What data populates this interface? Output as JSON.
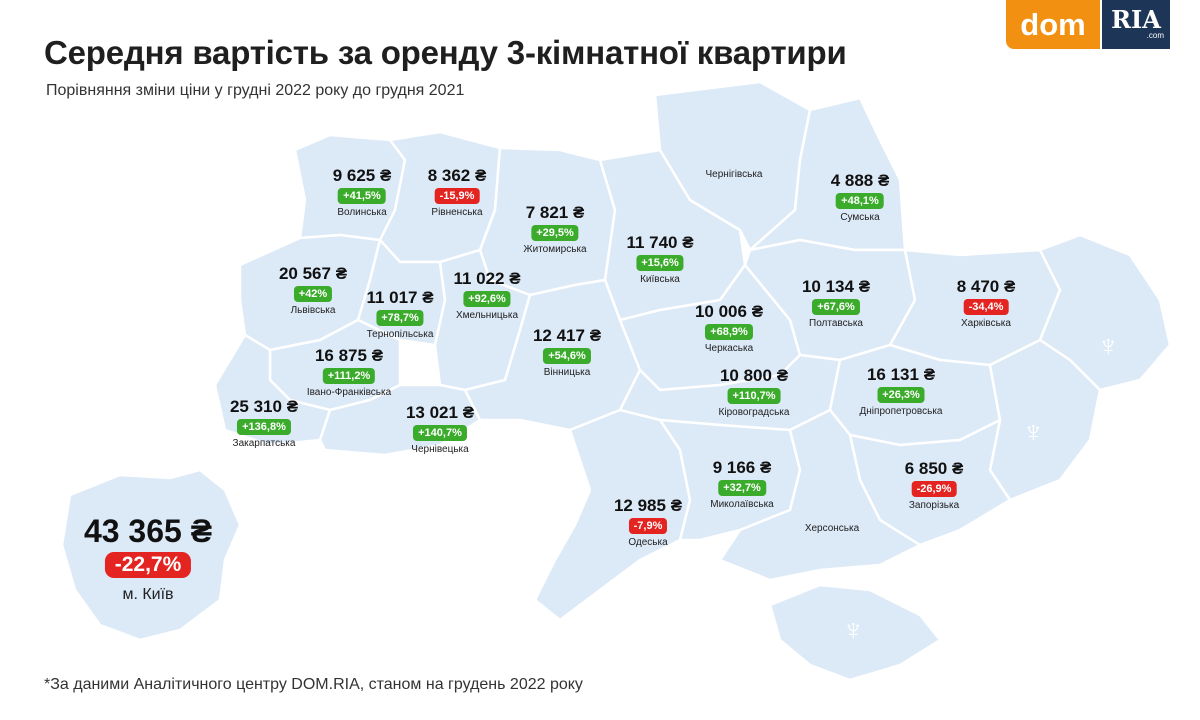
{
  "title": "Середня вартість за оренду 3-кімнатної квартири",
  "subtitle": "Порівняння зміни ціни у грудні 2022 року до грудня 2021",
  "footnote": "*За даними Аналітичного центру DOM.RIA, станом на грудень 2022 року",
  "logo": {
    "dom": "dom",
    "ria": "RIA",
    "com": ".com"
  },
  "colors": {
    "map_fill": "#dce9f7",
    "map_border": "#ffffff",
    "increase": "#3aab2a",
    "decrease": "#e32420",
    "brand_orange": "#f29111",
    "brand_navy": "#1d3557"
  },
  "kyiv": {
    "price": "43 365 ₴",
    "change": "-22,7%",
    "name": "м. Київ"
  },
  "regions": [
    {
      "id": "volynska",
      "price": "9 625 ₴",
      "change": "+41,5%",
      "dir": "up",
      "name": "Волинська"
    },
    {
      "id": "rivnenska",
      "price": "8 362 ₴",
      "change": "-15,9%",
      "dir": "down",
      "name": "Рівненська"
    },
    {
      "id": "zhytomyrska",
      "price": "7 821 ₴",
      "change": "+29,5%",
      "dir": "up",
      "name": "Житомирська"
    },
    {
      "id": "chernihivska",
      "price": "",
      "change": "",
      "dir": "",
      "name": "Чернігівська"
    },
    {
      "id": "sumska",
      "price": "4 888 ₴",
      "change": "+48,1%",
      "dir": "up",
      "name": "Сумська"
    },
    {
      "id": "kyivska",
      "price": "11 740 ₴",
      "change": "+15,6%",
      "dir": "up",
      "name": "Київська"
    },
    {
      "id": "lvivska",
      "price": "20 567 ₴",
      "change": "+42%",
      "dir": "up",
      "name": "Львівська"
    },
    {
      "id": "khmelnytska",
      "price": "11 022 ₴",
      "change": "+92,6%",
      "dir": "up",
      "name": "Хмельницька"
    },
    {
      "id": "ternopilska",
      "price": "11 017 ₴",
      "change": "+78,7%",
      "dir": "up",
      "name": "Тернопільська"
    },
    {
      "id": "poltavska",
      "price": "10 134 ₴",
      "change": "+67,6%",
      "dir": "up",
      "name": "Полтавська"
    },
    {
      "id": "kharkivska",
      "price": "8 470 ₴",
      "change": "-34,4%",
      "dir": "down",
      "name": "Харківська"
    },
    {
      "id": "cherkaska",
      "price": "10 006 ₴",
      "change": "+68,9%",
      "dir": "up",
      "name": "Черкаська"
    },
    {
      "id": "vinnytska",
      "price": "12 417 ₴",
      "change": "+54,6%",
      "dir": "up",
      "name": "Вінницька"
    },
    {
      "id": "ivano_frankivska",
      "price": "16 875 ₴",
      "change": "+111,2%",
      "dir": "up",
      "name": "Івано-Франківська"
    },
    {
      "id": "zakarpatska",
      "price": "25 310 ₴",
      "change": "+136,8%",
      "dir": "up",
      "name": "Закарпатська"
    },
    {
      "id": "chernivetska",
      "price": "13 021 ₴",
      "change": "+140,7%",
      "dir": "up",
      "name": "Чернівецька"
    },
    {
      "id": "kirovohradska",
      "price": "10 800 ₴",
      "change": "+110,7%",
      "dir": "up",
      "name": "Кіровоградська"
    },
    {
      "id": "dnipropetrovska",
      "price": "16 131 ₴",
      "change": "+26,3%",
      "dir": "up",
      "name": "Дніпропетровська"
    },
    {
      "id": "mykolaivska",
      "price": "9 166 ₴",
      "change": "+32,7%",
      "dir": "up",
      "name": "Миколаївська"
    },
    {
      "id": "odeska",
      "price": "12 985 ₴",
      "change": "-7,9%",
      "dir": "down",
      "name": "Одеська"
    },
    {
      "id": "zaporizka",
      "price": "6 850 ₴",
      "change": "-26,9%",
      "dir": "down",
      "name": "Запорізька"
    },
    {
      "id": "khersonska",
      "price": "",
      "change": "",
      "dir": "",
      "name": "Херсонська"
    }
  ]
}
